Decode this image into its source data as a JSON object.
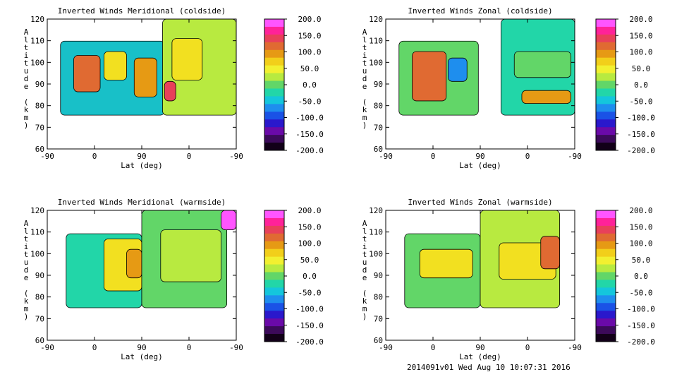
{
  "footer": "2014091v01 Wed Aug 10 10:07:31 2016",
  "colorbar": {
    "labels": [
      "200.0",
      "150.0",
      "100.0",
      "50.0",
      "0.0",
      "-50.0",
      "-100.0",
      "-150.0",
      "-200.0"
    ],
    "stops": [
      "#ff55ff",
      "#ff2299",
      "#e8405a",
      "#e06a32",
      "#e69a14",
      "#f2cf1a",
      "#f2f030",
      "#b8ea40",
      "#62d668",
      "#22d6a8",
      "#14c6dc",
      "#1e8eee",
      "#1a52e6",
      "#2a18cc",
      "#6a0aa8",
      "#3c0a5a",
      "#120018"
    ]
  },
  "chart_data": [
    {
      "type": "heatmap",
      "title": "Inverted Winds Meridional (coldside)",
      "xlabel": "Lat (deg)",
      "ylabel": "Altitude (km)",
      "x_ticks": [
        "-90",
        "0",
        "90",
        "0",
        "-90"
      ],
      "y_ticks": [
        "60",
        "70",
        "80",
        "90",
        "100",
        "110",
        "120"
      ],
      "ylim": [
        60,
        120
      ],
      "zlim": [
        -200,
        200
      ],
      "colorbar_ticks": [
        200,
        150,
        100,
        50,
        0,
        -50,
        -100,
        -150,
        -200
      ]
    },
    {
      "type": "heatmap",
      "title": "Inverted Winds Zonal (coldside)",
      "xlabel": "Lat (deg)",
      "ylabel": "Altitude (km)",
      "x_ticks": [
        "-90",
        "0",
        "90",
        "0",
        "-90"
      ],
      "y_ticks": [
        "60",
        "70",
        "80",
        "90",
        "100",
        "110",
        "120"
      ],
      "ylim": [
        60,
        120
      ],
      "zlim": [
        -200,
        200
      ],
      "colorbar_ticks": [
        200,
        150,
        100,
        50,
        0,
        -50,
        -100,
        -150,
        -200
      ]
    },
    {
      "type": "heatmap",
      "title": "Inverted Winds Meridional (warmside)",
      "xlabel": "Lat (deg)",
      "ylabel": "Altitude (km)",
      "x_ticks": [
        "-90",
        "0",
        "90",
        "0",
        "-90"
      ],
      "y_ticks": [
        "60",
        "70",
        "80",
        "90",
        "100",
        "110",
        "120"
      ],
      "ylim": [
        60,
        120
      ],
      "zlim": [
        -200,
        200
      ],
      "colorbar_ticks": [
        200,
        150,
        100,
        50,
        0,
        -50,
        -100,
        -150,
        -200
      ]
    },
    {
      "type": "heatmap",
      "title": "Inverted Winds Zonal (warmside)",
      "xlabel": "Lat (deg)",
      "ylabel": "Altitude (km)",
      "x_ticks": [
        "-90",
        "0",
        "90",
        "0",
        "-90"
      ],
      "y_ticks": [
        "60",
        "70",
        "80",
        "90",
        "100",
        "110",
        "120"
      ],
      "ylim": [
        60,
        120
      ],
      "zlim": [
        -200,
        200
      ],
      "colorbar_ticks": [
        200,
        150,
        100,
        50,
        0,
        -50,
        -100,
        -150,
        -200
      ]
    }
  ]
}
